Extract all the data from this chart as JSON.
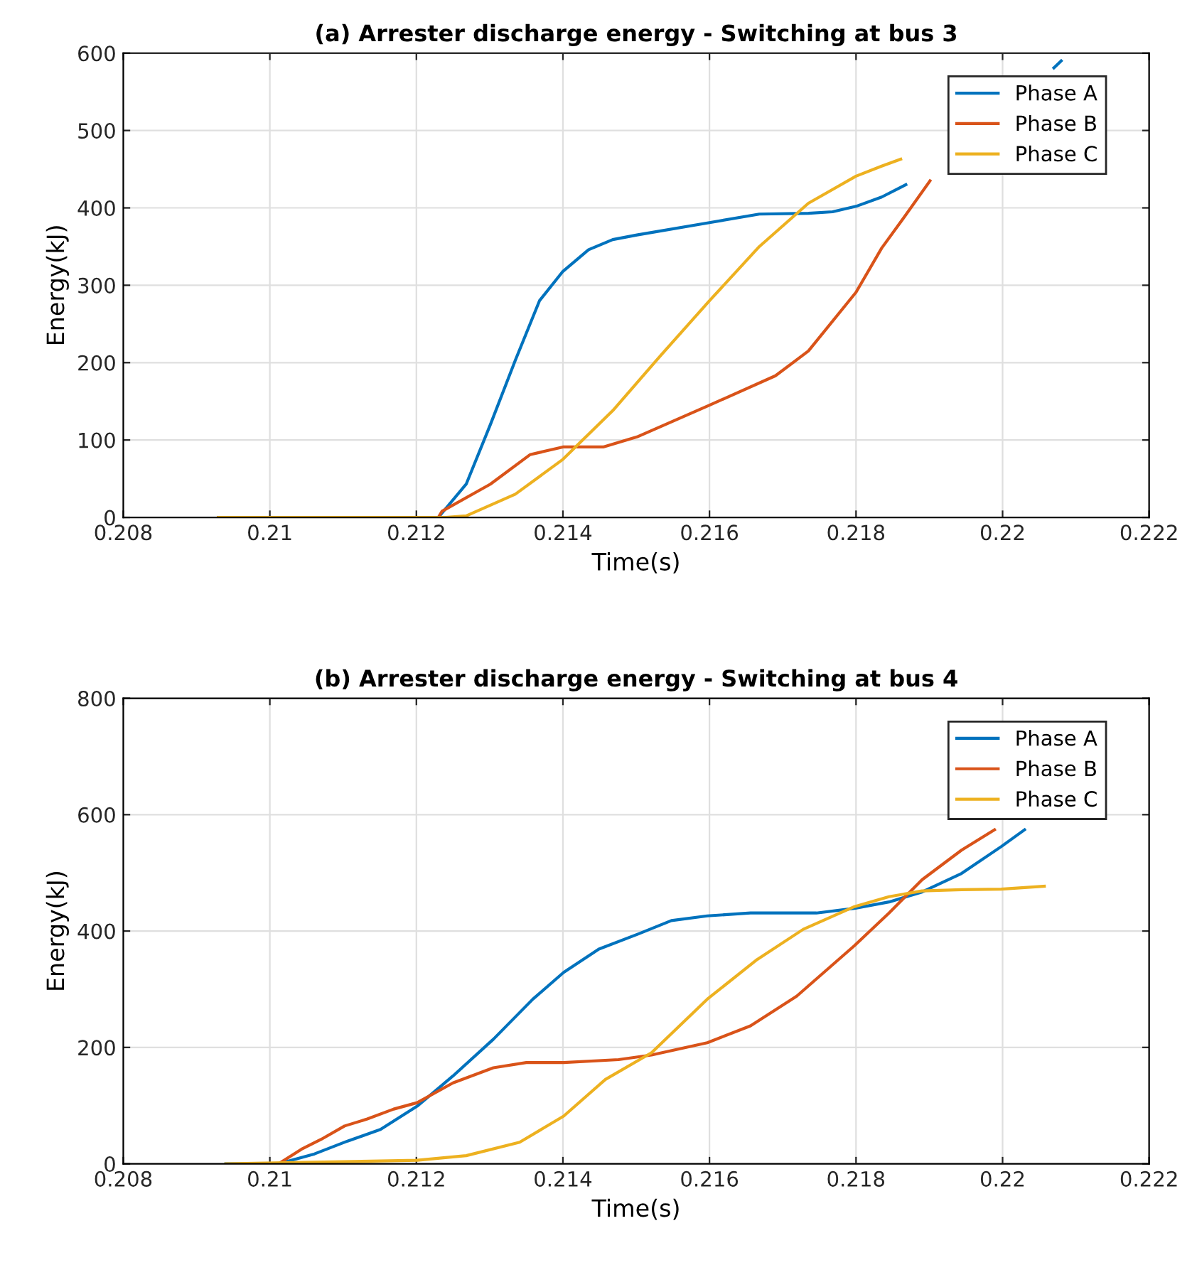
{
  "chart_data": [
    {
      "type": "line",
      "title": "(a) Arrester discharge energy - Switching at bus 3",
      "xlabel": "Time(s)",
      "ylabel": "Energy(kJ)",
      "xlim": [
        0.208,
        0.222
      ],
      "xticks": [
        0.208,
        0.21,
        0.212,
        0.214,
        0.216,
        0.218,
        0.22,
        0.222
      ],
      "ylim": [
        0,
        600
      ],
      "yticks": [
        0,
        100,
        200,
        300,
        400,
        500,
        600
      ],
      "grid": true,
      "legend": "top right",
      "series": [
        {
          "name": "Phase A",
          "color": "#0072bd",
          "x": [
            0.2093,
            0.2123,
            0.21268,
            0.21301,
            0.21335,
            0.21368,
            0.214,
            0.21435,
            0.21468,
            0.21501,
            0.216,
            0.21668,
            0.21735,
            0.21768,
            0.218,
            0.21835,
            0.21868,
            0.2195,
            0.2207,
            0.2208
          ],
          "values": [
            0,
            0,
            43,
            120,
            203,
            280,
            318,
            346,
            359,
            365,
            381,
            392,
            393,
            395,
            402,
            414,
            430,
            null,
            581,
            590
          ]
        },
        {
          "name": "Phase B",
          "color": "#d95319",
          "x": [
            0.2093,
            0.2123,
            0.21235,
            0.21301,
            0.21355,
            0.214,
            0.21455,
            0.21501,
            0.216,
            0.2169,
            0.21735,
            0.218,
            0.21835,
            0.21868,
            0.21901
          ],
          "values": [
            0,
            0,
            8,
            43,
            81,
            91,
            91,
            104,
            145,
            183,
            215,
            291,
            348,
            391,
            435
          ]
        },
        {
          "name": "Phase C",
          "color": "#edb120",
          "x": [
            0.2093,
            0.2124,
            0.21268,
            0.21335,
            0.214,
            0.21468,
            0.21535,
            0.216,
            0.21668,
            0.21735,
            0.218,
            0.21835,
            0.21861
          ],
          "values": [
            0,
            0,
            2,
            30,
            75,
            138,
            211,
            280,
            350,
            406,
            441,
            454,
            463
          ]
        }
      ]
    },
    {
      "type": "line",
      "title": "(b) Arrester discharge energy - Switching at bus 4",
      "xlabel": "Time(s)",
      "ylabel": "Energy(kJ)",
      "xlim": [
        0.208,
        0.222
      ],
      "xticks": [
        0.208,
        0.21,
        0.212,
        0.214,
        0.216,
        0.218,
        0.22,
        0.222
      ],
      "ylim": [
        0,
        800
      ],
      "yticks": [
        0,
        200,
        400,
        600,
        800
      ],
      "grid": true,
      "legend": "top right",
      "series": [
        {
          "name": "Phase A",
          "color": "#0072bd",
          "x": [
            0.2094,
            0.21012,
            0.21061,
            0.21106,
            0.21151,
            0.21201,
            0.2125,
            0.21305,
            0.21359,
            0.21401,
            0.21449,
            0.21503,
            0.21548,
            0.21597,
            0.21656,
            0.21746,
            0.21798,
            0.21845,
            0.2189,
            0.21944,
            0.21998,
            0.2203
          ],
          "values": [
            0,
            0,
            17,
            39,
            59,
            99,
            151,
            214,
            283,
            329,
            369,
            395,
            418,
            426,
            431,
            431,
            439,
            450,
            467,
            499,
            545,
            574
          ]
        },
        {
          "name": "Phase B",
          "color": "#d95319",
          "x": [
            0.21012,
            0.21043,
            0.2107,
            0.21102,
            0.21133,
            0.21169,
            0.21201,
            0.2125,
            0.21305,
            0.2135,
            0.21401,
            0.21476,
            0.21521,
            0.21597,
            0.21656,
            0.21719,
            0.21798,
            0.21845,
            0.2189,
            0.21944,
            0.21989
          ],
          "values": [
            0,
            25,
            42,
            65,
            77,
            94,
            105,
            139,
            165,
            174,
            174,
            179,
            187,
            208,
            237,
            288,
            375,
            431,
            488,
            539,
            574
          ]
        },
        {
          "name": "Phase C",
          "color": "#edb120",
          "x": [
            0.2094,
            0.21201,
            0.21268,
            0.21341,
            0.21401,
            0.21458,
            0.21521,
            0.21597,
            0.21665,
            0.21728,
            0.21798,
            0.21845,
            0.2189,
            0.21944,
            0.21998,
            0.22057
          ],
          "values": [
            0,
            6,
            14,
            37,
            82,
            145,
            191,
            283,
            351,
            403,
            442,
            459,
            469,
            471,
            472,
            477
          ]
        }
      ]
    }
  ]
}
